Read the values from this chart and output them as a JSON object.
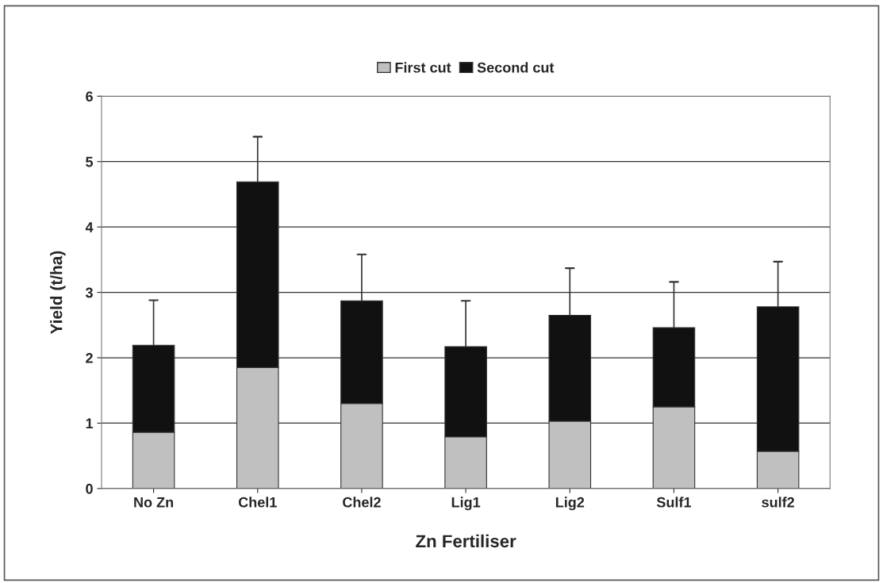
{
  "chart_data": {
    "type": "bar",
    "stacked": true,
    "xlabel": "Zn Fertiliser",
    "ylabel": "Yield (t/ha)",
    "categories": [
      "No Zn",
      "Chel1",
      "Chel2",
      "Lig1",
      "Lig2",
      "Sulf1",
      "sulf2"
    ],
    "series": [
      {
        "name": "First cut",
        "color": "#c0c0c0",
        "values": [
          0.86,
          1.85,
          1.3,
          0.79,
          1.03,
          1.25,
          0.57
        ]
      },
      {
        "name": "Second cut",
        "color": "#111111",
        "values": [
          1.33,
          2.84,
          1.57,
          1.38,
          1.62,
          1.21,
          2.21
        ],
        "errors": [
          [
            2.19,
            2.88
          ],
          [
            4.69,
            5.38
          ],
          [
            2.87,
            3.58
          ],
          [
            2.17,
            2.87
          ],
          [
            2.65,
            3.37
          ],
          [
            2.46,
            3.16
          ],
          [
            2.78,
            3.47
          ]
        ]
      }
    ],
    "ylim": [
      0,
      6
    ],
    "yticks": [
      0,
      1,
      2,
      3,
      4,
      5,
      6
    ],
    "grid": "y",
    "legend": "top"
  }
}
